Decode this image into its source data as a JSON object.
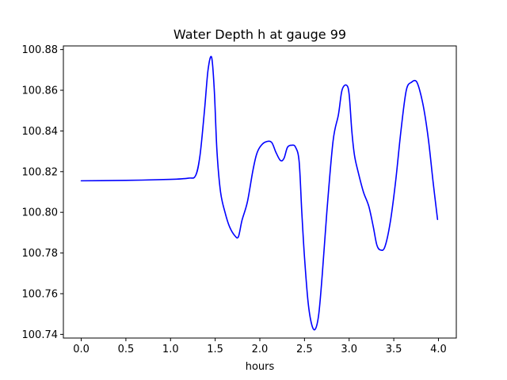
{
  "chart_data": {
    "type": "line",
    "title": "Water Depth h at gauge 99",
    "xlabel": "hours",
    "ylabel": "",
    "xlim": [
      -0.2,
      4.2
    ],
    "ylim": [
      100.7382,
      100.8818
    ],
    "grid": false,
    "x_ticks": [
      0.0,
      0.5,
      1.0,
      1.5,
      2.0,
      2.5,
      3.0,
      3.5,
      4.0
    ],
    "x_tick_labels": [
      "0.0",
      "0.5",
      "1.0",
      "1.5",
      "2.0",
      "2.5",
      "3.0",
      "3.5",
      "4.0"
    ],
    "y_ticks": [
      100.74,
      100.76,
      100.78,
      100.8,
      100.82,
      100.84,
      100.86,
      100.88
    ],
    "y_tick_labels": [
      "100.74",
      "100.76",
      "100.78",
      "100.80",
      "100.82",
      "100.84",
      "100.86",
      "100.88"
    ],
    "series": [
      {
        "color": "#0000ff",
        "x": [
          0.0,
          0.5,
          1.0,
          1.2,
          1.28,
          1.33,
          1.38,
          1.42,
          1.46,
          1.49,
          1.52,
          1.56,
          1.61,
          1.66,
          1.72,
          1.76,
          1.8,
          1.86,
          1.92,
          1.96,
          2.0,
          2.06,
          2.13,
          2.18,
          2.23,
          2.27,
          2.31,
          2.36,
          2.4,
          2.44,
          2.47,
          2.5,
          2.54,
          2.58,
          2.62,
          2.66,
          2.7,
          2.75,
          2.82,
          2.88,
          2.92,
          2.97,
          3.0,
          3.03,
          3.06,
          3.1,
          3.16,
          3.22,
          3.27,
          3.31,
          3.35,
          3.4,
          3.46,
          3.52,
          3.58,
          3.64,
          3.7,
          3.75,
          3.79,
          3.84,
          3.89,
          3.94,
          3.99
        ],
        "y": [
          100.8155,
          100.8157,
          100.8162,
          100.8168,
          100.818,
          100.828,
          100.85,
          100.87,
          100.8762,
          100.86,
          100.83,
          100.81,
          100.8,
          100.793,
          100.7885,
          100.788,
          100.796,
          100.805,
          100.82,
          100.828,
          100.832,
          100.8345,
          100.8345,
          100.8295,
          100.8255,
          100.8265,
          100.832,
          100.833,
          100.832,
          100.825,
          100.8,
          100.778,
          100.756,
          100.745,
          100.7425,
          100.75,
          100.77,
          100.8,
          100.835,
          100.848,
          100.86,
          100.8625,
          100.858,
          100.84,
          100.828,
          100.82,
          100.81,
          100.803,
          100.793,
          100.784,
          100.7815,
          100.783,
          100.795,
          100.815,
          100.84,
          100.86,
          100.864,
          100.8645,
          100.86,
          100.85,
          100.835,
          100.815,
          100.7965
        ]
      }
    ]
  }
}
